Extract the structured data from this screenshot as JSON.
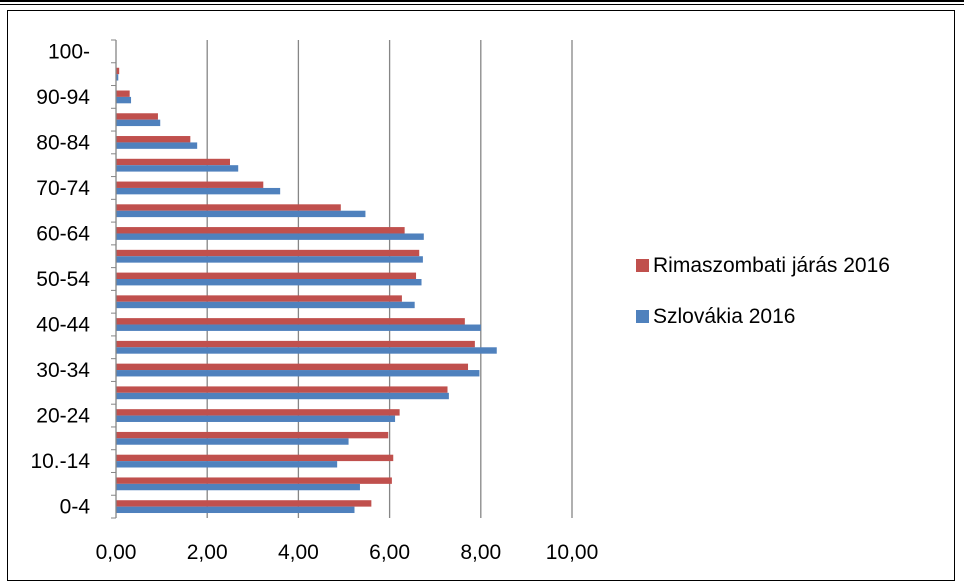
{
  "chart_data": {
    "type": "bar",
    "orientation": "horizontal",
    "title": "",
    "xlabel": "",
    "ylabel": "",
    "xlim": [
      0,
      10
    ],
    "x_ticks": [
      "0,00",
      "2,00",
      "4,00",
      "6,00",
      "8,00",
      "10,00"
    ],
    "grid": "vertical",
    "legend_position": "right",
    "categories": [
      "0-4",
      "5-9",
      "10.-14",
      "15-19",
      "20-24",
      "25-29",
      "30-34",
      "35-39",
      "40-44",
      "45-49",
      "50-54",
      "55-59",
      "60-64",
      "65-69",
      "70-74",
      "75-79",
      "80-84",
      "85-89",
      "90-94",
      "95-99",
      "100-"
    ],
    "category_labels_shown": [
      "0-4",
      "",
      "10.-14",
      "",
      "20-24",
      "",
      "30-34",
      "",
      "40-44",
      "",
      "50-54",
      "",
      "60-64",
      "",
      "70-74",
      "",
      "80-84",
      "",
      "90-94",
      "",
      "100-"
    ],
    "series": [
      {
        "name": "Rimaszombati járás 2016",
        "color": "#c0504d",
        "values": [
          5.6,
          6.05,
          6.08,
          5.97,
          6.22,
          7.27,
          7.72,
          7.87,
          7.65,
          6.27,
          6.58,
          6.65,
          6.33,
          4.93,
          3.23,
          2.5,
          1.63,
          0.92,
          0.3,
          0.07,
          0.0
        ]
      },
      {
        "name": "Szlovákia 2016",
        "color": "#4f81bd",
        "values": [
          5.23,
          5.35,
          4.85,
          5.1,
          6.12,
          7.3,
          7.97,
          8.35,
          8.0,
          6.55,
          6.7,
          6.73,
          6.75,
          5.47,
          3.6,
          2.68,
          1.78,
          0.97,
          0.33,
          0.05,
          0.0
        ]
      }
    ]
  }
}
